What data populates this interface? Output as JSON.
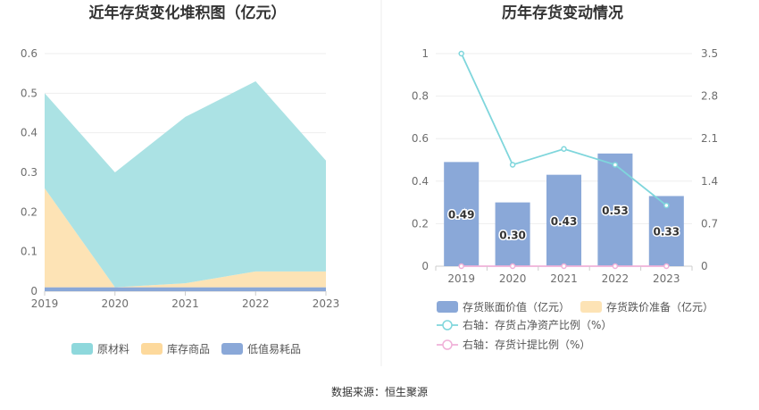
{
  "chart_data": [
    {
      "type": "area",
      "title": "近年存货变化堆积图（亿元）",
      "categories": [
        "2019",
        "2020",
        "2021",
        "2022",
        "2023"
      ],
      "y_ticks": [
        "0",
        "0.1",
        "0.2",
        "0.3",
        "0.4",
        "0.5",
        "0.6"
      ],
      "ylim": [
        0,
        0.6
      ],
      "stacked": true,
      "series": [
        {
          "name": "低值易耗品",
          "values": [
            0.01,
            0.01,
            0.01,
            0.01,
            0.01
          ],
          "color": "#8aa8d8"
        },
        {
          "name": "库存商品",
          "values": [
            0.25,
            0.0,
            0.01,
            0.04,
            0.04
          ],
          "color": "#fde3b5"
        },
        {
          "name": "原材料",
          "values": [
            0.24,
            0.29,
            0.42,
            0.48,
            0.28
          ],
          "color": "#abe2e4"
        }
      ],
      "legend_order": [
        {
          "name": "原材料",
          "color": "#8ed8dc"
        },
        {
          "name": "库存商品",
          "color": "#fdd99c"
        },
        {
          "name": "低值易耗品",
          "color": "#8aa8d8"
        }
      ],
      "grid": true,
      "legend_position": "bottom"
    },
    {
      "type": "bar",
      "title": "历年存货变动情况",
      "categories": [
        "2019",
        "2020",
        "2021",
        "2022",
        "2023"
      ],
      "left_y_ticks": [
        "0",
        "0.2",
        "0.4",
        "0.6",
        "0.8",
        "1"
      ],
      "right_y_ticks": [
        "0",
        "0.7",
        "1.4",
        "2.1",
        "2.8",
        "3.5"
      ],
      "ylim_left": [
        0,
        1
      ],
      "ylim_right": [
        0,
        3.5
      ],
      "series": [
        {
          "name": "存货账面价值（亿元）",
          "kind": "bar",
          "axis": "left",
          "values": [
            0.49,
            0.3,
            0.43,
            0.53,
            0.33
          ],
          "labels": [
            "0.49",
            "0.30",
            "0.43",
            "0.53",
            "0.33"
          ],
          "color": "#8aa8d8"
        },
        {
          "name": "存货跌价准备（亿元）",
          "kind": "bar",
          "axis": "left",
          "values": [
            0,
            0,
            0,
            0,
            0
          ],
          "color": "#fde3b5"
        },
        {
          "name": "右轴：存货占净资产比例（%）",
          "kind": "line",
          "axis": "right",
          "values": [
            3.5,
            1.67,
            1.93,
            1.67,
            1.0
          ],
          "color": "#7fd6dc"
        },
        {
          "name": "右轴：存货计提比例（%）",
          "kind": "line",
          "axis": "right",
          "values": [
            0,
            0,
            0,
            0,
            0
          ],
          "color": "#f0b0d8"
        }
      ],
      "grid": true,
      "legend_position": "bottom"
    }
  ],
  "source": "数据来源：恒生聚源"
}
